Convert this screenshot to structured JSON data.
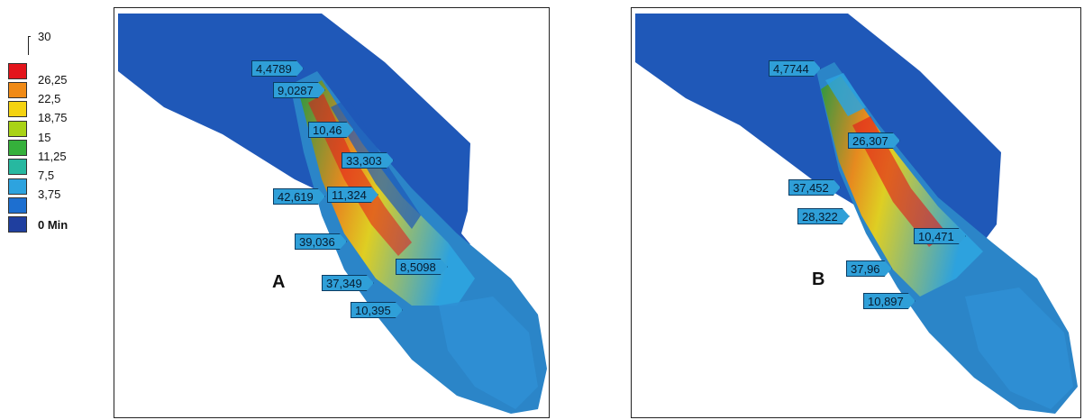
{
  "legend": {
    "colors": [
      "#e3141b",
      "#f08a16",
      "#f4d311",
      "#a9d316",
      "#35b03b",
      "#27b8a0",
      "#2da3df",
      "#1d6fd0",
      "#1f3f9f"
    ],
    "labels": [
      "30",
      "26,25",
      "22,5",
      "18,75",
      "15",
      "11,25",
      "7,5",
      "3,75",
      "0 Min"
    ]
  },
  "panelA": {
    "letter": "A",
    "values": [
      "4,4789",
      "9,0287",
      "10,46",
      "33,303",
      "42,619",
      "11,324",
      "39,036",
      "8,5098",
      "37,349",
      "10,395"
    ]
  },
  "panelB": {
    "letter": "B",
    "values": [
      "4,7744",
      "26,307",
      "37,452",
      "28,322",
      "10,471",
      "37,96",
      "10,897"
    ]
  }
}
